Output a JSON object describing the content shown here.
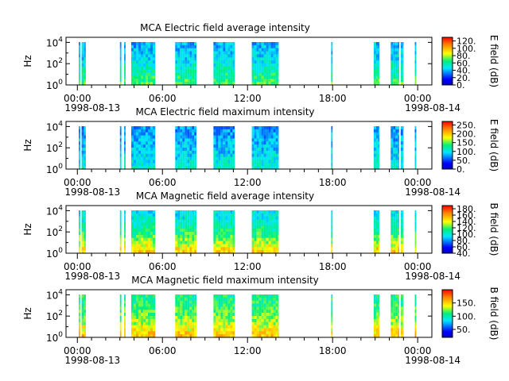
{
  "chart_data": [
    {
      "type": "heatmap",
      "title": "MCA  Electric field average intensity",
      "ylabel": "Hz",
      "yscale": "log",
      "ylim": [
        1,
        30000
      ],
      "y_ticks": [
        {
          "base": "10",
          "exp": "0",
          "value": 1
        },
        {
          "base": "10",
          "exp": "2",
          "value": 100
        },
        {
          "base": "10",
          "exp": "4",
          "value": 10000
        }
      ],
      "x_ticks": [
        {
          "hour": 0,
          "time": "00:00",
          "date": "1998-08-13"
        },
        {
          "hour": 6,
          "time": "06:00",
          "date": ""
        },
        {
          "hour": 12,
          "time": "12:00",
          "date": ""
        },
        {
          "hour": 18,
          "time": "18:00",
          "date": ""
        },
        {
          "hour": 24,
          "time": "00:00",
          "date": "1998-08-14"
        }
      ],
      "xlim_hours": [
        -0.8,
        25
      ],
      "colorbar": {
        "label": "E field (dB)",
        "range": [
          0,
          130
        ],
        "ticks": [
          "0.",
          "20.",
          "40.",
          "60.",
          "80.",
          "100.",
          "120."
        ],
        "tick_values": [
          0,
          20,
          40,
          60,
          80,
          100,
          120
        ]
      },
      "data_blocks_hours": [
        [
          0.1,
          0.2
        ],
        [
          0.3,
          0.6
        ],
        [
          3.0,
          3.1
        ],
        [
          3.3,
          3.4
        ],
        [
          3.8,
          5.5
        ],
        [
          6.9,
          8.4
        ],
        [
          9.6,
          11.1
        ],
        [
          12.3,
          14.2
        ],
        [
          17.9,
          18.0
        ],
        [
          20.9,
          21.3
        ],
        [
          22.1,
          22.7
        ],
        [
          22.8,
          23.0
        ],
        [
          23.8,
          23.9
        ]
      ],
      "intensity": {
        "low_freq_db": 70,
        "high_freq_db": 40
      }
    },
    {
      "type": "heatmap",
      "title": "MCA  Electric field maximum intensity",
      "ylabel": "Hz",
      "yscale": "log",
      "ylim": [
        1,
        30000
      ],
      "y_ticks": [
        {
          "base": "10",
          "exp": "0",
          "value": 1
        },
        {
          "base": "10",
          "exp": "2",
          "value": 100
        },
        {
          "base": "10",
          "exp": "4",
          "value": 10000
        }
      ],
      "x_ticks": [
        {
          "hour": 0,
          "time": "00:00",
          "date": "1998-08-13"
        },
        {
          "hour": 6,
          "time": "06:00",
          "date": ""
        },
        {
          "hour": 12,
          "time": "12:00",
          "date": ""
        },
        {
          "hour": 18,
          "time": "18:00",
          "date": ""
        },
        {
          "hour": 24,
          "time": "00:00",
          "date": "1998-08-14"
        }
      ],
      "xlim_hours": [
        -0.8,
        25
      ],
      "colorbar": {
        "label": "E field (dB)",
        "range": [
          0,
          270
        ],
        "ticks": [
          "0.",
          "50.",
          "100.",
          "150.",
          "200.",
          "250."
        ],
        "tick_values": [
          0,
          50,
          100,
          150,
          200,
          250
        ]
      },
      "data_blocks_hours": [
        [
          0.1,
          0.2
        ],
        [
          0.3,
          0.6
        ],
        [
          3.0,
          3.1
        ],
        [
          3.3,
          3.4
        ],
        [
          3.8,
          5.5
        ],
        [
          6.9,
          8.4
        ],
        [
          9.6,
          11.1
        ],
        [
          12.3,
          14.2
        ],
        [
          17.9,
          18.0
        ],
        [
          20.9,
          21.3
        ],
        [
          22.1,
          22.7
        ],
        [
          22.8,
          23.0
        ],
        [
          23.8,
          23.9
        ]
      ],
      "intensity": {
        "low_freq_db": 110,
        "high_freq_db": 75
      }
    },
    {
      "type": "heatmap",
      "title": "MCA  Magnetic field average intensity",
      "ylabel": "Hz",
      "yscale": "log",
      "ylim": [
        1,
        30000
      ],
      "y_ticks": [
        {
          "base": "10",
          "exp": "0",
          "value": 1
        },
        {
          "base": "10",
          "exp": "2",
          "value": 100
        },
        {
          "base": "10",
          "exp": "4",
          "value": 10000
        }
      ],
      "x_ticks": [
        {
          "hour": 0,
          "time": "00:00",
          "date": "1998-08-13"
        },
        {
          "hour": 6,
          "time": "06:00",
          "date": ""
        },
        {
          "hour": 12,
          "time": "12:00",
          "date": ""
        },
        {
          "hour": 18,
          "time": "18:00",
          "date": ""
        },
        {
          "hour": 24,
          "time": "00:00",
          "date": "1998-08-14"
        }
      ],
      "xlim_hours": [
        -0.8,
        25
      ],
      "colorbar": {
        "label": "B field (dB)",
        "range": [
          40,
          190
        ],
        "ticks": [
          "40.",
          "60.",
          "80.",
          "100.",
          "120.",
          "140.",
          "160.",
          "180."
        ],
        "tick_values": [
          40,
          60,
          80,
          100,
          120,
          140,
          160,
          180
        ]
      },
      "data_blocks_hours": [
        [
          0.1,
          0.2
        ],
        [
          0.3,
          0.6
        ],
        [
          3.0,
          3.1
        ],
        [
          3.3,
          3.4
        ],
        [
          3.8,
          5.5
        ],
        [
          6.9,
          8.4
        ],
        [
          9.6,
          11.1
        ],
        [
          12.3,
          14.2
        ],
        [
          17.9,
          18.0
        ],
        [
          20.9,
          21.3
        ],
        [
          22.1,
          22.7
        ],
        [
          22.8,
          23.0
        ],
        [
          23.8,
          23.9
        ]
      ],
      "intensity": {
        "low_freq_db": 150,
        "high_freq_db": 95
      }
    },
    {
      "type": "heatmap",
      "title": "MCA  Magnetic field maximum intensity",
      "ylabel": "Hz",
      "yscale": "log",
      "ylim": [
        1,
        30000
      ],
      "y_ticks": [
        {
          "base": "10",
          "exp": "0",
          "value": 1
        },
        {
          "base": "10",
          "exp": "2",
          "value": 100
        },
        {
          "base": "10",
          "exp": "4",
          "value": 10000
        }
      ],
      "x_ticks": [
        {
          "hour": 0,
          "time": "00:00",
          "date": "1998-08-13"
        },
        {
          "hour": 6,
          "time": "06:00",
          "date": ""
        },
        {
          "hour": 12,
          "time": "12:00",
          "date": ""
        },
        {
          "hour": 18,
          "time": "18:00",
          "date": ""
        },
        {
          "hour": 24,
          "time": "00:00",
          "date": "1998-08-14"
        }
      ],
      "xlim_hours": [
        -0.8,
        25
      ],
      "colorbar": {
        "label": "B field (dB)",
        "range": [
          20,
          200
        ],
        "ticks": [
          "50.",
          "100.",
          "150."
        ],
        "tick_values": [
          50,
          100,
          150
        ]
      },
      "data_blocks_hours": [
        [
          0.1,
          0.2
        ],
        [
          0.3,
          0.6
        ],
        [
          3.0,
          3.1
        ],
        [
          3.3,
          3.4
        ],
        [
          3.8,
          5.5
        ],
        [
          6.9,
          8.4
        ],
        [
          9.6,
          11.1
        ],
        [
          12.3,
          14.2
        ],
        [
          17.9,
          18.0
        ],
        [
          20.9,
          21.3
        ],
        [
          22.1,
          22.7
        ],
        [
          22.8,
          23.0
        ],
        [
          23.8,
          23.9
        ]
      ],
      "intensity": {
        "low_freq_db": 155,
        "high_freq_db": 105
      }
    }
  ]
}
